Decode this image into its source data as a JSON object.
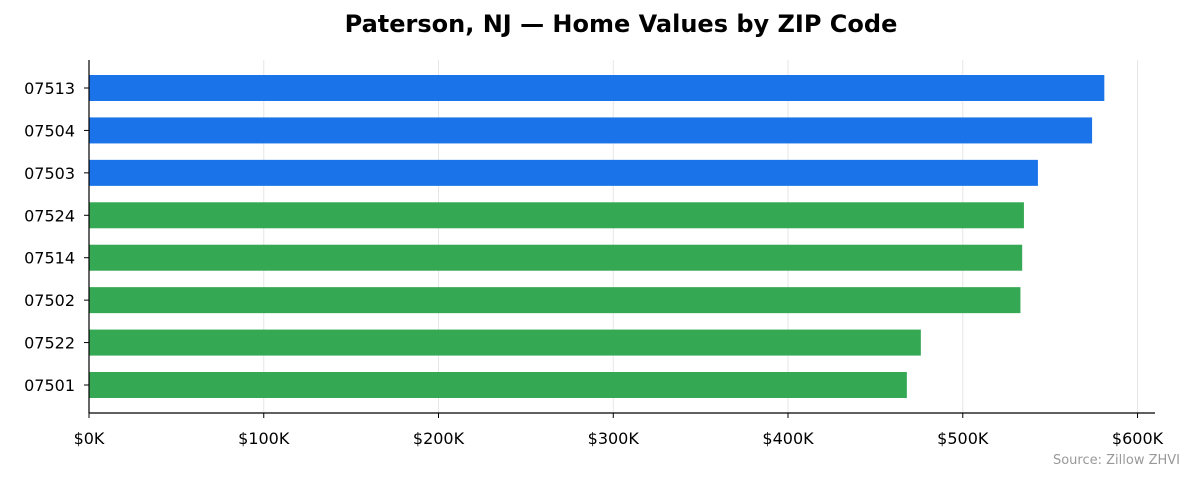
{
  "chart_data": {
    "type": "bar",
    "orientation": "horizontal",
    "title": "Paterson, NJ — Home Values by ZIP Code",
    "xlabel": "",
    "ylabel": "",
    "source": "Source: Zillow ZHVI",
    "xlim": [
      0,
      610000
    ],
    "xticks": [
      0,
      100000,
      200000,
      300000,
      400000,
      500000,
      600000
    ],
    "xtick_labels": [
      "$0K",
      "$100K",
      "$200K",
      "$300K",
      "$400K",
      "$500K",
      "$600K"
    ],
    "grid": "vertical",
    "categories": [
      "07513",
      "07504",
      "07503",
      "07524",
      "07514",
      "07502",
      "07522",
      "07501"
    ],
    "values": [
      581000,
      574000,
      543000,
      535000,
      534000,
      533000,
      476000,
      468000
    ],
    "bar_colors": [
      "#1a73e8",
      "#1a73e8",
      "#1a73e8",
      "#34a853",
      "#34a853",
      "#34a853",
      "#34a853",
      "#34a853"
    ]
  }
}
